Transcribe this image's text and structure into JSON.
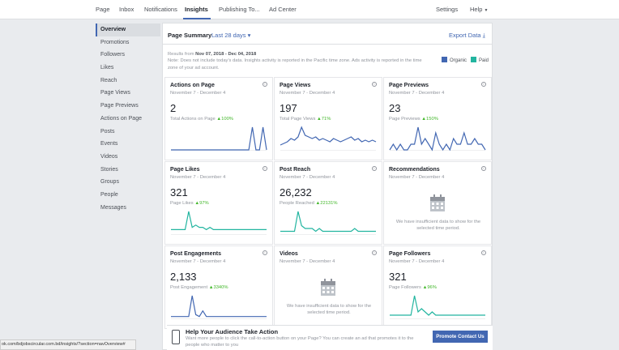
{
  "nav": {
    "tabs": [
      "Page",
      "Inbox",
      "Notifications",
      "Insights",
      "Publishing To...",
      "Ad Center"
    ],
    "right": [
      "Settings",
      "Help"
    ]
  },
  "sidebar": [
    "Overview",
    "Promotions",
    "Followers",
    "Likes",
    "Reach",
    "Page Views",
    "Page Previews",
    "Actions on Page",
    "Posts",
    "Events",
    "Videos",
    "Stories",
    "Groups",
    "People",
    "Messages"
  ],
  "summary": {
    "title": "Page Summary",
    "range": "Last 28 days ▾",
    "export": "Export Data",
    "results_prefix": "Results from",
    "results_range": "Nov 07, 2018 - Dec 04, 2018",
    "note": "Note: Does not include today's data. Insights activity is reported in the Pacific time zone. Ads activity is reported in the time zone of your ad account.",
    "legend": [
      {
        "label": "Organic",
        "color": "#4267b2"
      },
      {
        "label": "Paid",
        "color": "#23b5a0"
      }
    ]
  },
  "cards": [
    {
      "title": "Actions on Page",
      "sub": "November 7 - December 4",
      "value": "2",
      "label": "Total Actions on Page",
      "pct": "100%",
      "color": "#4267b2",
      "spark": [
        0,
        0,
        0,
        0,
        0,
        0,
        0,
        0,
        0,
        0,
        0,
        0,
        0,
        0,
        0,
        0,
        0,
        0,
        0,
        0,
        0,
        0,
        0,
        1,
        0,
        0,
        1,
        0
      ]
    },
    {
      "title": "Page Views",
      "sub": "November 7 - December 4",
      "value": "197",
      "label": "Total Page Views",
      "pct": "71%",
      "color": "#4267b2",
      "spark": [
        3,
        4,
        5,
        7,
        6,
        8,
        14,
        9,
        8,
        7,
        8,
        6,
        7,
        6,
        5,
        7,
        6,
        5,
        6,
        7,
        8,
        6,
        7,
        5,
        6,
        5,
        6,
        5
      ]
    },
    {
      "title": "Page Previews",
      "sub": "November 7 - December 4",
      "value": "23",
      "label": "Page Previews",
      "pct": "150%",
      "color": "#4267b2",
      "spark": [
        0,
        1,
        0,
        1,
        0,
        0,
        1,
        1,
        4,
        1,
        2,
        1,
        0,
        3,
        1,
        0,
        1,
        0,
        2,
        1,
        1,
        3,
        1,
        1,
        2,
        1,
        1,
        0
      ]
    },
    {
      "title": "Page Likes",
      "sub": "November 7 - December 4",
      "value": "321",
      "label": "Page Likes",
      "pct": "97%",
      "color": "#23b5a0",
      "spark": [
        2,
        2,
        2,
        2,
        2,
        10,
        3,
        4,
        3,
        3,
        2,
        3,
        2,
        2,
        2,
        2,
        2,
        2,
        2,
        2,
        2,
        2,
        2,
        2,
        2,
        2,
        2,
        2
      ]
    },
    {
      "title": "Post Reach",
      "sub": "November 7 - December 4",
      "value": "26,232",
      "label": "People Reached",
      "pct": "22131%",
      "color": "#23b5a0",
      "spark": [
        1,
        1,
        1,
        1,
        1,
        8,
        3,
        2,
        2,
        2,
        1,
        2,
        1,
        1,
        1,
        1,
        1,
        1,
        1,
        1,
        1,
        2,
        1,
        1,
        1,
        1,
        1,
        1
      ]
    },
    {
      "title": "Recommendations",
      "sub": "November 7 - December 4",
      "empty": "We have insufficient data to show for the selected time period."
    },
    {
      "title": "Post Engagements",
      "sub": "November 7 - December 4",
      "value": "2,133",
      "label": "Post Engagement",
      "pct": "3340%",
      "color": "#4267b2",
      "spark": [
        1,
        1,
        1,
        1,
        1,
        1,
        12,
        2,
        1,
        4,
        1,
        1,
        1,
        1,
        1,
        1,
        1,
        1,
        1,
        1,
        1,
        1,
        1,
        1,
        1,
        1,
        1,
        1
      ]
    },
    {
      "title": "Videos",
      "sub": "November 7 - December 4",
      "empty": "We have insufficient data to show for the selected time period."
    },
    {
      "title": "Page Followers",
      "sub": "November 7 - December 4",
      "value": "321",
      "label": "Page Followers",
      "pct": "96%",
      "color": "#23b5a0",
      "spark": [
        1,
        1,
        1,
        1,
        1,
        1,
        1,
        7,
        2,
        3,
        2,
        1,
        2,
        1,
        1,
        1,
        1,
        1,
        1,
        1,
        1,
        1,
        1,
        1,
        1,
        1,
        1,
        1
      ]
    }
  ],
  "cta": {
    "title": "Help Your Audience Take Action",
    "text": "Want more people to click the call-to-action button on your Page? You can create an ad that promotes it to the people who matter to you",
    "button": "Promote Contact Us"
  },
  "status_url": "ok.com/bdjobscircular.com.bd/insights/?section=navOverview#"
}
